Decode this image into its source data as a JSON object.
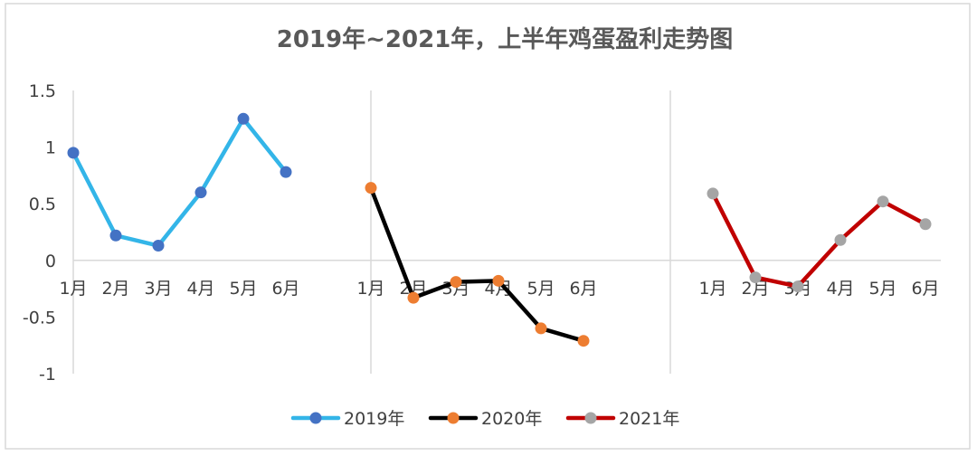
{
  "chart_data": {
    "type": "line",
    "title": "2019年~2021年，上半年鸡蛋盈利走势图",
    "xlabel": "",
    "ylabel": "",
    "ylim": [
      -1,
      1.5
    ],
    "yticks": [
      "1.5",
      "1",
      "0.5",
      "0",
      "-0.5",
      "-1"
    ],
    "y_tick_values": [
      1.5,
      1,
      0.5,
      0,
      -0.5,
      -1
    ],
    "categories": [
      "1月",
      "2月",
      "3月",
      "4月",
      "5月",
      "6月"
    ],
    "grid": false,
    "legend_position": "bottom",
    "series": [
      {
        "name": "2019年",
        "values": [
          0.95,
          0.22,
          0.13,
          0.6,
          1.25,
          0.78
        ],
        "line_color": "#33B5E8",
        "marker_color": "#4472C4"
      },
      {
        "name": "2020年",
        "values": [
          0.64,
          -0.33,
          -0.19,
          -0.18,
          -0.6,
          -0.71
        ],
        "line_color": "#000000",
        "marker_color": "#ED7D31"
      },
      {
        "name": "2021年",
        "values": [
          0.59,
          -0.15,
          -0.23,
          0.18,
          0.52,
          0.32
        ],
        "line_color": "#C00000",
        "marker_color": "#A5A5A5"
      }
    ]
  }
}
